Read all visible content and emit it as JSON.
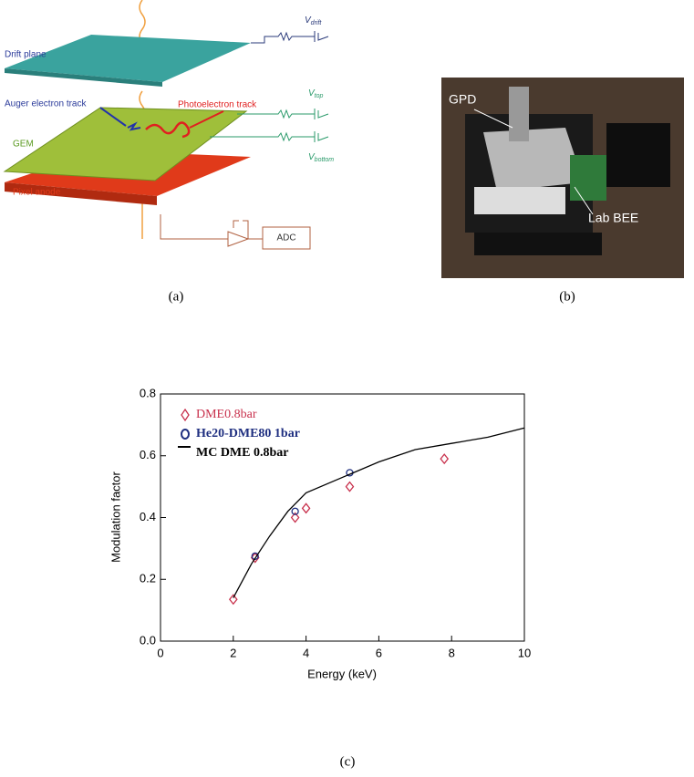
{
  "panel_a": {
    "drift_plane": "Drift plane",
    "auger_track": "Auger electron track",
    "photoelectron_track": "Photoelectron track",
    "gem": "GEM",
    "pixel_anode": "Pixel anode",
    "adc": "ADC",
    "v_drift": {
      "main": "V",
      "sub": "drift"
    },
    "v_top": {
      "main": "V",
      "sub": "top"
    },
    "v_bottom": {
      "main": "V",
      "sub": "bottom"
    }
  },
  "panel_b": {
    "gpd": "GPD",
    "lab_bee": "Lab BEE"
  },
  "captions": [
    "(a)",
    "(b)",
    "(c)"
  ],
  "chart_data": {
    "type": "scatter",
    "x_label": "Energy (keV)",
    "y_label": "Modulation factor",
    "xlim": [
      0,
      10
    ],
    "ylim": [
      0,
      0.8
    ],
    "xticks": [
      0,
      2,
      4,
      6,
      8,
      10
    ],
    "yticks": [
      {
        "value": 0,
        "label": "0.0"
      },
      0.2,
      0.4,
      0.6,
      0.8
    ],
    "series": [
      {
        "name": "DME0.8bar",
        "color": "#c8304c",
        "marker": "diamond",
        "x": [
          2.0,
          2.6,
          3.7,
          4.0,
          5.2,
          7.8
        ],
        "values": [
          0.135,
          0.27,
          0.4,
          0.43,
          0.5,
          0.59
        ]
      },
      {
        "name": "He20-DME80 1bar",
        "color": "#1f2f80",
        "marker": "circle",
        "x": [
          2.6,
          3.7,
          5.2
        ],
        "values": [
          0.275,
          0.42,
          0.545
        ]
      },
      {
        "name": "MC DME 0.8bar",
        "color": "#000000",
        "marker": "line",
        "x": [
          2.0,
          2.5,
          3.0,
          3.5,
          4.0,
          5.0,
          6.0,
          7.0,
          8.0,
          9.0,
          10.0
        ],
        "values": [
          0.14,
          0.25,
          0.34,
          0.42,
          0.48,
          0.53,
          0.58,
          0.62,
          0.64,
          0.66,
          0.69
        ]
      }
    ]
  }
}
